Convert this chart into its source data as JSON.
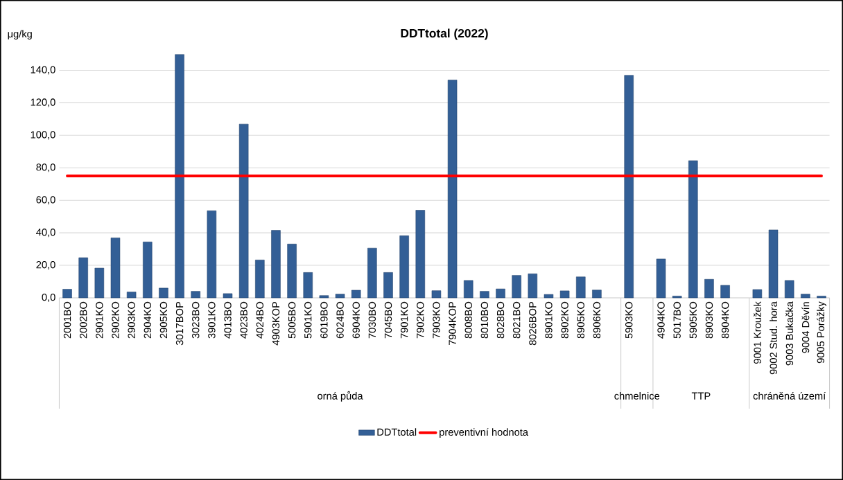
{
  "chart_data": {
    "type": "bar",
    "title": "DDTtotal (2022)",
    "ylabel": "μg/kg",
    "categories": [
      "2001BO",
      "2002BO",
      "2901KO",
      "2902KO",
      "2903KO",
      "2904KO",
      "2905KO",
      "3017BOP",
      "3023BO",
      "3901KO",
      "4013BO",
      "4023BO",
      "4024BO",
      "4903KOP",
      "5005BO",
      "5901KO",
      "6019BO",
      "6024BO",
      "6904KO",
      "7030BO",
      "7045BO",
      "7901KO",
      "7902KO",
      "7903KO",
      "7904KOP",
      "8008BO",
      "8010BO",
      "8028BO",
      "8021BO",
      "8026BOP",
      "8901KO",
      "8902KO",
      "8905KO",
      "8906KO",
      null,
      "5903KO",
      null,
      "4904KO",
      "5017BO",
      "5905KO",
      "8903KO",
      "8904KO",
      null,
      "9001 Kroužek",
      "9002 Stud. hora",
      "9003 Bukačka",
      "9004 Děvín",
      "9005 Porážky"
    ],
    "series": [
      {
        "name": "DDTtotal",
        "color": "#335f96",
        "values": [
          5.3,
          24.7,
          18.3,
          36.9,
          3.6,
          34.4,
          6.0,
          149.7,
          4.0,
          53.6,
          2.6,
          106.9,
          23.3,
          41.5,
          33.1,
          15.6,
          1.4,
          2.3,
          4.7,
          30.6,
          15.6,
          38.2,
          53.9,
          4.4,
          134.0,
          10.7,
          4.0,
          5.5,
          13.8,
          14.8,
          2.1,
          4.3,
          12.9,
          4.8,
          null,
          136.9,
          null,
          23.9,
          1.1,
          84.4,
          11.4,
          7.7,
          null,
          5.1,
          41.8,
          10.7,
          2.3,
          1.1
        ]
      }
    ],
    "ylim": [
      0,
      150
    ],
    "yticks": [
      {
        "value": 0,
        "label": "0,0"
      },
      {
        "value": 20,
        "label": "20,0"
      },
      {
        "value": 40,
        "label": "40,0"
      },
      {
        "value": 60,
        "label": "60,0"
      },
      {
        "value": 80,
        "label": "80,0"
      },
      {
        "value": 100,
        "label": "100,0"
      },
      {
        "value": 120,
        "label": "120,0"
      },
      {
        "value": 140,
        "label": "140,0"
      }
    ],
    "ref_lines": [
      {
        "axis": "y",
        "value": 75,
        "label": "preventivní hodnota",
        "color": "#ff0000"
      }
    ],
    "annotations": [
      "orná půda",
      "chmelnice",
      "TTP",
      "chráněná území"
    ],
    "grid": "y",
    "legend": "bottom"
  }
}
